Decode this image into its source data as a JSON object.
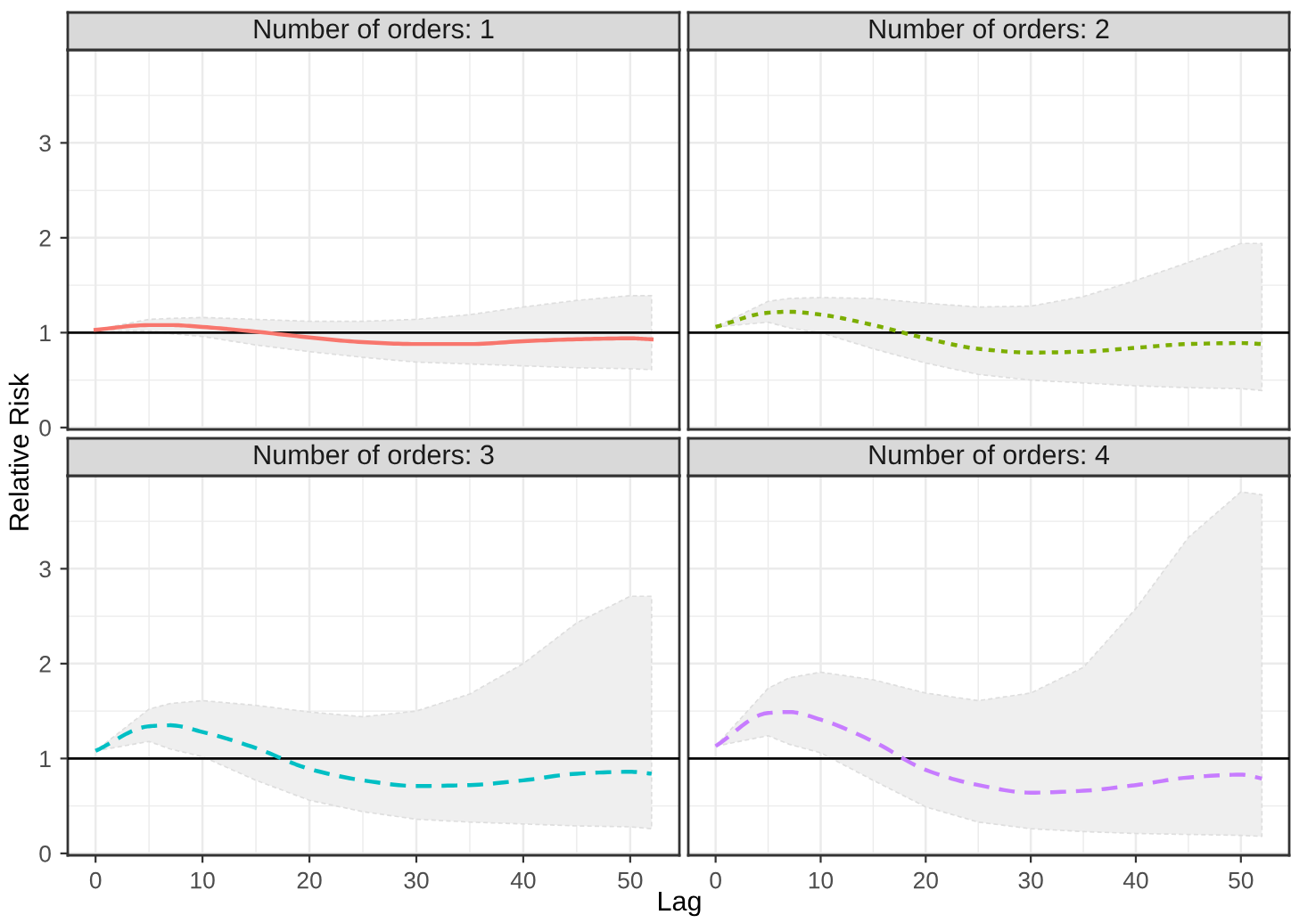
{
  "chart_data": [
    {
      "type": "line",
      "title": "Number of orders: 1",
      "ylabel": "Relative Risk",
      "xlim": [
        -2.6,
        54.6
      ],
      "ylim": [
        -0.02,
        3.98
      ],
      "xticks": [
        0,
        10,
        20,
        30,
        40,
        50
      ],
      "yticks": [
        0,
        1,
        2,
        3
      ],
      "tick_labels": "y",
      "grid": true,
      "ref_lines": [
        {
          "axis": "y",
          "value": 1,
          "color": "#000000"
        }
      ],
      "series": [
        {
          "color": "#f8766d",
          "line_style": "solid",
          "x": [
            0,
            5,
            7,
            10,
            15,
            20,
            25,
            30,
            35,
            40,
            45,
            50,
            52
          ],
          "values": [
            1.03,
            1.08,
            1.08,
            1.06,
            1.01,
            0.95,
            0.9,
            0.88,
            0.88,
            0.91,
            0.93,
            0.94,
            0.93
          ],
          "upper": [
            1.03,
            1.14,
            1.15,
            1.16,
            1.14,
            1.12,
            1.12,
            1.14,
            1.19,
            1.27,
            1.34,
            1.39,
            1.39
          ],
          "lower": [
            1.03,
            1.02,
            0.99,
            0.96,
            0.87,
            0.8,
            0.74,
            0.69,
            0.67,
            0.65,
            0.63,
            0.62,
            0.61
          ]
        }
      ]
    },
    {
      "type": "line",
      "title": "Number of orders: 2",
      "xlim": [
        -2.6,
        54.6
      ],
      "ylim": [
        -0.02,
        3.98
      ],
      "xticks": [
        0,
        10,
        20,
        30,
        40,
        50
      ],
      "yticks": [
        0,
        1,
        2,
        3
      ],
      "tick_labels": false,
      "grid": true,
      "ref_lines": [
        {
          "axis": "y",
          "value": 1,
          "color": "#000000"
        }
      ],
      "series": [
        {
          "color": "#7cae00",
          "line_style": "dotted",
          "x": [
            0,
            5,
            7,
            10,
            15,
            20,
            25,
            30,
            35,
            40,
            45,
            50,
            52
          ],
          "values": [
            1.06,
            1.21,
            1.22,
            1.19,
            1.08,
            0.94,
            0.83,
            0.79,
            0.8,
            0.84,
            0.88,
            0.89,
            0.88
          ],
          "upper": [
            1.06,
            1.33,
            1.36,
            1.37,
            1.36,
            1.31,
            1.27,
            1.28,
            1.38,
            1.55,
            1.74,
            1.94,
            1.94
          ],
          "lower": [
            1.06,
            1.11,
            1.05,
            1.0,
            0.83,
            0.68,
            0.56,
            0.5,
            0.47,
            0.44,
            0.42,
            0.41,
            0.39
          ]
        }
      ]
    },
    {
      "type": "line",
      "title": "Number of orders: 3",
      "xlabel": "Lag",
      "xlim": [
        -2.6,
        54.6
      ],
      "ylim": [
        -0.02,
        3.98
      ],
      "xticks": [
        0,
        10,
        20,
        30,
        40,
        50
      ],
      "yticks": [
        0,
        1,
        2,
        3
      ],
      "grid": true,
      "ref_lines": [
        {
          "axis": "y",
          "value": 1,
          "color": "#000000"
        }
      ],
      "series": [
        {
          "color": "#00bfc4",
          "line_style": "dashed",
          "x": [
            0,
            5,
            7,
            10,
            15,
            20,
            25,
            30,
            35,
            40,
            45,
            50,
            52
          ],
          "values": [
            1.08,
            1.34,
            1.35,
            1.28,
            1.11,
            0.89,
            0.77,
            0.71,
            0.72,
            0.77,
            0.84,
            0.86,
            0.84
          ],
          "upper": [
            1.08,
            1.52,
            1.58,
            1.61,
            1.56,
            1.49,
            1.44,
            1.5,
            1.68,
            2.0,
            2.43,
            2.71,
            2.71
          ],
          "lower": [
            1.08,
            1.18,
            1.1,
            1.02,
            0.77,
            0.56,
            0.44,
            0.36,
            0.33,
            0.31,
            0.29,
            0.28,
            0.26
          ]
        }
      ]
    },
    {
      "type": "line",
      "title": "Number of orders: 4",
      "xlim": [
        -2.6,
        54.6
      ],
      "ylim": [
        -0.02,
        3.98
      ],
      "xticks": [
        0,
        10,
        20,
        30,
        40,
        50
      ],
      "yticks": [
        0,
        1,
        2,
        3
      ],
      "tick_labels": "x",
      "grid": true,
      "ref_lines": [
        {
          "axis": "y",
          "value": 1,
          "color": "#000000"
        }
      ],
      "series": [
        {
          "color": "#c77cff",
          "line_style": "dashed",
          "x": [
            0,
            5,
            7,
            10,
            15,
            20,
            25,
            30,
            35,
            40,
            45,
            50,
            52
          ],
          "values": [
            1.13,
            1.48,
            1.49,
            1.41,
            1.18,
            0.88,
            0.72,
            0.64,
            0.66,
            0.72,
            0.8,
            0.83,
            0.79
          ],
          "upper": [
            1.13,
            1.74,
            1.85,
            1.91,
            1.83,
            1.69,
            1.61,
            1.69,
            1.96,
            2.58,
            3.33,
            3.81,
            3.78
          ],
          "lower": [
            1.13,
            1.24,
            1.15,
            1.06,
            0.77,
            0.49,
            0.33,
            0.26,
            0.23,
            0.21,
            0.2,
            0.19,
            0.18
          ]
        }
      ]
    }
  ]
}
